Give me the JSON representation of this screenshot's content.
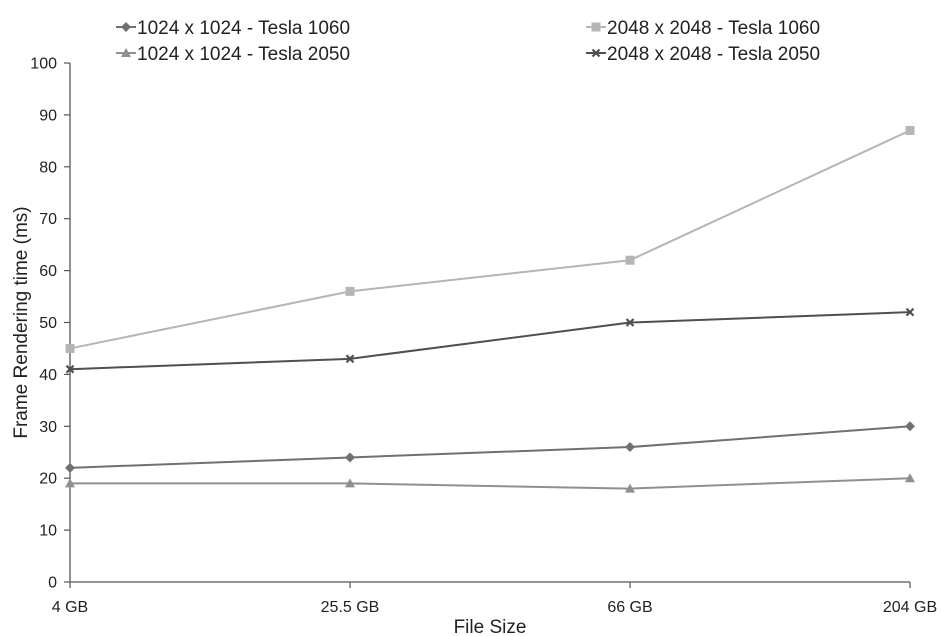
{
  "chart_data": {
    "type": "line",
    "categories": [
      "4 GB",
      "25.5 GB",
      "66 GB",
      "204 GB"
    ],
    "series": [
      {
        "name": "1024 x 1024 - Tesla 1060",
        "values": [
          22,
          24,
          26,
          30
        ],
        "color": "#707070",
        "marker": "diamond"
      },
      {
        "name": "2048 x 2048 - Tesla 1060",
        "values": [
          45,
          56,
          62,
          87
        ],
        "color": "#b5b5b5",
        "marker": "square"
      },
      {
        "name": "1024 x 1024 - Tesla 2050",
        "values": [
          19,
          19,
          18,
          20
        ],
        "color": "#8f8f8f",
        "marker": "triangle"
      },
      {
        "name": "2048 x 2048 - Tesla 2050",
        "values": [
          41,
          43,
          50,
          52
        ],
        "color": "#4f4f4f",
        "marker": "x"
      }
    ],
    "xlabel": "File Size",
    "ylabel": "Frame Rendering time (ms)",
    "ylim": [
      0,
      100
    ],
    "yticks": [
      0,
      10,
      20,
      30,
      40,
      50,
      60,
      70,
      80,
      90,
      100
    ],
    "grid": false,
    "legend_position": "top"
  }
}
